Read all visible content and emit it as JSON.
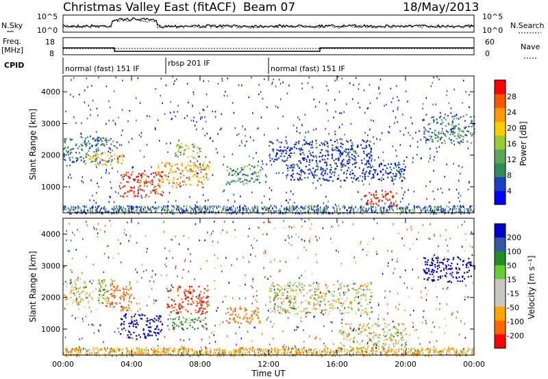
{
  "header": {
    "title": "Christmas Valley East (fitACF)",
    "beam": "Beam 07",
    "date": "18/May/2013"
  },
  "noise_panel": {
    "left_label": "N.Sky",
    "right_label": "N.Search",
    "y_ticks_left": [
      "10^5",
      "10^0"
    ],
    "y_ticks_right": [
      "10^5",
      "10^0"
    ]
  },
  "freq_panel": {
    "left_label_line1": "Freq.",
    "left_label_line2": "[MHz]",
    "right_label": "Nave",
    "y_ticks_left": [
      "18",
      "8"
    ],
    "y_ticks_right": [
      "60",
      "0"
    ]
  },
  "cpid": {
    "label": "CPID",
    "segments": [
      {
        "text": "normal (fast) 151 IF",
        "start_hour": 0,
        "end_hour": 6
      },
      {
        "text": "rbsp 201 IF",
        "start_hour": 6,
        "end_hour": 12
      },
      {
        "text": "normal (fast) 151 IF",
        "start_hour": 12,
        "end_hour": 24
      }
    ]
  },
  "power_panel": {
    "ylabel": "Slant Range [km]",
    "yticks": [
      "4000",
      "3000",
      "2000",
      "1000"
    ],
    "colorbar_label": "Power [dB]",
    "colorbar_ticks": [
      "28",
      "24",
      "20",
      "16",
      "12",
      "8",
      "4"
    ],
    "colors": [
      "#0000ff",
      "#1a3fbf",
      "#2e8b57",
      "#5ca65c",
      "#99cc33",
      "#ffcc00",
      "#ff9900",
      "#ff5500",
      "#ff0000"
    ]
  },
  "velocity_panel": {
    "ylabel": "Slant Range [km]",
    "yticks": [
      "4000",
      "3000",
      "2000",
      "1000"
    ],
    "colorbar_label": "Velocity [m s⁻¹]",
    "colorbar_ticks": [
      "200",
      "100",
      "50",
      "15",
      "-15",
      "-50",
      "-100",
      "-200"
    ],
    "colors": [
      "#0000cc",
      "#3355aa",
      "#228b22",
      "#66cc33",
      "#c8c8c0",
      "#c8c8c0",
      "#ffa500",
      "#ff6600",
      "#ff0000"
    ]
  },
  "x_axis": {
    "ticks": [
      "00:00",
      "04:00",
      "08:00",
      "12:00",
      "16:00",
      "20:00",
      "00:00"
    ],
    "label": "Time UT"
  },
  "chart_data": {
    "type": "heatmap",
    "title": "Christmas Valley East (fitACF)",
    "xlabel": "Time UT",
    "ylabel": "Slant Range [km]",
    "xlim_hours": [
      0,
      24
    ],
    "ylim_km": [
      180,
      4500
    ],
    "frequency_mhz": [
      {
        "start_hour": 0,
        "end_hour": 3,
        "value": 12
      },
      {
        "start_hour": 3,
        "end_hour": 15,
        "value": 10
      },
      {
        "start_hour": 15,
        "end_hour": 24,
        "value": 12
      }
    ],
    "power_echo_regions": [
      {
        "t0": 0.0,
        "t1": 3.0,
        "r0": 1800,
        "r1": 2600,
        "power_db": 10
      },
      {
        "t0": 1.5,
        "t1": 3.5,
        "r0": 1700,
        "r1": 2100,
        "power_db": 20
      },
      {
        "t0": 3.3,
        "t1": 5.8,
        "r0": 700,
        "r1": 1500,
        "power_db": 28
      },
      {
        "t0": 5.5,
        "t1": 8.5,
        "r0": 1000,
        "r1": 1800,
        "power_db": 22
      },
      {
        "t0": 6.5,
        "t1": 8.0,
        "r0": 1900,
        "r1": 2400,
        "power_db": 16
      },
      {
        "t0": 9.5,
        "t1": 11.5,
        "r0": 1100,
        "r1": 1700,
        "power_db": 12
      },
      {
        "t0": 12.0,
        "t1": 18.0,
        "r0": 1800,
        "r1": 2500,
        "power_db": 6
      },
      {
        "t0": 13.0,
        "t1": 20.0,
        "r0": 1200,
        "r1": 1800,
        "power_db": 6
      },
      {
        "t0": 17.5,
        "t1": 19.5,
        "r0": 400,
        "r1": 900,
        "power_db": 28
      },
      {
        "t0": 21.0,
        "t1": 24.0,
        "r0": 2400,
        "r1": 3300,
        "power_db": 10
      }
    ],
    "velocity_echo_regions": [
      {
        "t0": 0.0,
        "t1": 3.0,
        "r0": 1800,
        "r1": 2600,
        "velocity": 0
      },
      {
        "t0": 2.5,
        "t1": 4.0,
        "r0": 1600,
        "r1": 2400,
        "velocity": -100
      },
      {
        "t0": 3.3,
        "t1": 5.8,
        "r0": 700,
        "r1": 1500,
        "velocity": 200
      },
      {
        "t0": 6.0,
        "t1": 8.5,
        "r0": 1500,
        "r1": 2400,
        "velocity": -150
      },
      {
        "t0": 6.0,
        "t1": 8.5,
        "r0": 1000,
        "r1": 1400,
        "velocity": 50
      },
      {
        "t0": 9.5,
        "t1": 11.5,
        "r0": 1200,
        "r1": 1700,
        "velocity": -60
      },
      {
        "t0": 12.0,
        "t1": 18.0,
        "r0": 1500,
        "r1": 2500,
        "velocity": 0
      },
      {
        "t0": 16.0,
        "t1": 20.0,
        "r0": 400,
        "r1": 1200,
        "velocity": 0
      },
      {
        "t0": 21.0,
        "t1": 24.0,
        "r0": 2500,
        "r1": 3300,
        "velocity": 200
      }
    ]
  }
}
